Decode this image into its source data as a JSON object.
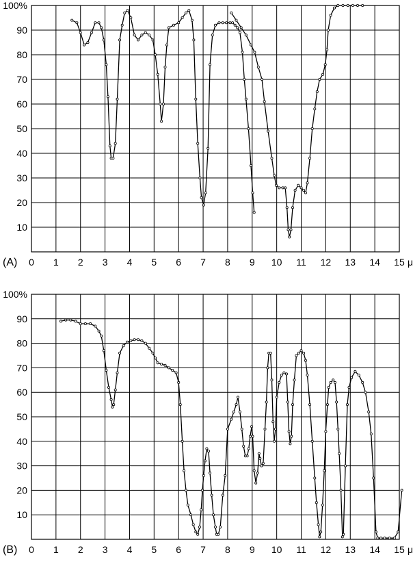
{
  "chart_data": [
    {
      "type": "line",
      "panel_label": "(A)",
      "x_unit": "μ",
      "x_ticks": [
        "0",
        "1",
        "2",
        "3",
        "4",
        "5",
        "6",
        "7",
        "8",
        "9",
        "10",
        "11",
        "12",
        "13",
        "14",
        "15"
      ],
      "y_ticks": [
        "10",
        "20",
        "30",
        "40",
        "50",
        "60",
        "70",
        "80",
        "90",
        "100%"
      ],
      "xlim": [
        0,
        15
      ],
      "ylim": [
        0,
        100
      ],
      "grid": true,
      "series": [
        {
          "values": [
            [
              1.65,
              94
            ],
            [
              1.85,
              93
            ],
            [
              2.0,
              89
            ],
            [
              2.15,
              84
            ],
            [
              2.3,
              85
            ],
            [
              2.45,
              89
            ],
            [
              2.6,
              93
            ],
            [
              2.75,
              93
            ],
            [
              2.85,
              91
            ],
            [
              2.95,
              86
            ],
            [
              3.05,
              76
            ],
            [
              3.12,
              63
            ],
            [
              3.2,
              43
            ],
            [
              3.25,
              38
            ],
            [
              3.33,
              38
            ],
            [
              3.42,
              44
            ],
            [
              3.5,
              62
            ],
            [
              3.6,
              86
            ],
            [
              3.7,
              92
            ],
            [
              3.8,
              97
            ],
            [
              3.92,
              98
            ],
            [
              4.05,
              95
            ],
            [
              4.2,
              88
            ],
            [
              4.35,
              86
            ],
            [
              4.5,
              88
            ],
            [
              4.65,
              89
            ],
            [
              4.8,
              88
            ],
            [
              4.95,
              86
            ],
            [
              5.05,
              80
            ],
            [
              5.15,
              72
            ],
            [
              5.25,
              60
            ],
            [
              5.3,
              53
            ],
            [
              5.38,
              60
            ],
            [
              5.45,
              75
            ],
            [
              5.52,
              84
            ],
            [
              5.6,
              91
            ],
            [
              5.8,
              92
            ],
            [
              6.0,
              93
            ],
            [
              6.15,
              95
            ],
            [
              6.3,
              97
            ],
            [
              6.42,
              98
            ],
            [
              6.55,
              94
            ],
            [
              6.62,
              86
            ],
            [
              6.7,
              62
            ],
            [
              6.78,
              44
            ],
            [
              6.87,
              30
            ],
            [
              6.93,
              22
            ],
            [
              7.02,
              19
            ],
            [
              7.1,
              24
            ],
            [
              7.2,
              42
            ],
            [
              7.28,
              76
            ],
            [
              7.38,
              88
            ],
            [
              7.5,
              92
            ],
            [
              7.65,
              93
            ],
            [
              7.8,
              93
            ],
            [
              7.95,
              93
            ],
            [
              8.1,
              93
            ],
            [
              8.2,
              93
            ],
            [
              8.3,
              92
            ],
            [
              8.4,
              91
            ],
            [
              8.5,
              89
            ],
            [
              8.6,
              81
            ],
            [
              8.68,
              70
            ],
            [
              8.75,
              62
            ],
            [
              8.85,
              50
            ],
            [
              8.95,
              35
            ],
            [
              9.02,
              24
            ],
            [
              9.08,
              16
            ]
          ]
        },
        {
          "values": [
            [
              8.15,
              97
            ],
            [
              8.35,
              94
            ],
            [
              8.55,
              91
            ],
            [
              8.75,
              88
            ],
            [
              8.95,
              84
            ],
            [
              9.1,
              81
            ],
            [
              9.25,
              75
            ],
            [
              9.4,
              70
            ],
            [
              9.5,
              61
            ],
            [
              9.65,
              49
            ],
            [
              9.8,
              38
            ],
            [
              9.9,
              31
            ],
            [
              9.98,
              27
            ],
            [
              10.1,
              26
            ],
            [
              10.25,
              26
            ],
            [
              10.35,
              26
            ],
            [
              10.42,
              18
            ],
            [
              10.47,
              9
            ],
            [
              10.52,
              6
            ],
            [
              10.58,
              9
            ],
            [
              10.65,
              18
            ],
            [
              10.75,
              25
            ],
            [
              10.88,
              27
            ],
            [
              11.0,
              26
            ],
            [
              11.1,
              25
            ],
            [
              11.18,
              24
            ],
            [
              11.25,
              28
            ],
            [
              11.35,
              38
            ],
            [
              11.45,
              50
            ],
            [
              11.55,
              58
            ],
            [
              11.65,
              65
            ],
            [
              11.75,
              70
            ],
            [
              11.88,
              72
            ],
            [
              11.98,
              76
            ],
            [
              12.05,
              82
            ],
            [
              12.1,
              90
            ],
            [
              12.2,
              96
            ],
            [
              12.35,
              99
            ],
            [
              12.5,
              100
            ],
            [
              12.7,
              100
            ],
            [
              12.9,
              100
            ],
            [
              13.1,
              100
            ],
            [
              13.3,
              100
            ],
            [
              13.5,
              100
            ]
          ]
        }
      ]
    },
    {
      "type": "line",
      "panel_label": "(B)",
      "x_unit": "μ",
      "x_ticks": [
        "0",
        "1",
        "2",
        "3",
        "4",
        "5",
        "6",
        "7",
        "8",
        "9",
        "10",
        "11",
        "12",
        "13",
        "14",
        "15"
      ],
      "y_ticks": [
        "10",
        "20",
        "30",
        "40",
        "50",
        "60",
        "70",
        "80",
        "90",
        "100%"
      ],
      "xlim": [
        0,
        15
      ],
      "ylim": [
        0,
        100
      ],
      "grid": true,
      "series": [
        {
          "values": [
            [
              1.2,
              89
            ],
            [
              1.4,
              89.5
            ],
            [
              1.6,
              89.5
            ],
            [
              1.8,
              89
            ],
            [
              2.0,
              88
            ],
            [
              2.2,
              88
            ],
            [
              2.4,
              88
            ],
            [
              2.6,
              87
            ],
            [
              2.75,
              85
            ],
            [
              2.85,
              83
            ],
            [
              2.95,
              77
            ],
            [
              3.05,
              69
            ],
            [
              3.15,
              62
            ],
            [
              3.25,
              57
            ],
            [
              3.3,
              54
            ],
            [
              3.35,
              55
            ],
            [
              3.42,
              61
            ],
            [
              3.5,
              68
            ],
            [
              3.6,
              76
            ],
            [
              3.75,
              79
            ],
            [
              3.9,
              80.5
            ],
            [
              4.05,
              81
            ],
            [
              4.2,
              81.5
            ],
            [
              4.35,
              81.5
            ],
            [
              4.5,
              81
            ],
            [
              4.65,
              80
            ],
            [
              4.8,
              78
            ],
            [
              4.95,
              76
            ],
            [
              5.05,
              74
            ],
            [
              5.15,
              72
            ],
            [
              5.3,
              71.5
            ],
            [
              5.45,
              71
            ],
            [
              5.6,
              70
            ],
            [
              5.75,
              69
            ],
            [
              5.9,
              68
            ],
            [
              6.0,
              64
            ],
            [
              6.07,
              55
            ],
            [
              6.15,
              40
            ],
            [
              6.22,
              28
            ],
            [
              6.3,
              20
            ],
            [
              6.38,
              14
            ],
            [
              6.5,
              10
            ],
            [
              6.6,
              6
            ],
            [
              6.7,
              3
            ],
            [
              6.78,
              2
            ],
            [
              6.86,
              5
            ],
            [
              6.92,
              12
            ],
            [
              6.97,
              20
            ],
            [
              7.02,
              26
            ],
            [
              7.08,
              32
            ],
            [
              7.15,
              37
            ],
            [
              7.22,
              36
            ],
            [
              7.28,
              27
            ],
            [
              7.35,
              18
            ],
            [
              7.42,
              10
            ],
            [
              7.5,
              5
            ],
            [
              7.55,
              2
            ],
            [
              7.62,
              2
            ],
            [
              7.7,
              5
            ],
            [
              7.8,
              18
            ],
            [
              7.9,
              26
            ],
            [
              8.0,
              45
            ],
            [
              8.15,
              49
            ],
            [
              8.25,
              52
            ],
            [
              8.35,
              55
            ],
            [
              8.42,
              58
            ],
            [
              8.5,
              52
            ],
            [
              8.58,
              45
            ],
            [
              8.65,
              38
            ],
            [
              8.72,
              34
            ],
            [
              8.8,
              34
            ],
            [
              8.86,
              37
            ],
            [
              8.92,
              42
            ],
            [
              8.98,
              46
            ],
            [
              9.02,
              42
            ],
            [
              9.08,
              28
            ],
            [
              9.15,
              23
            ],
            [
              9.22,
              27
            ],
            [
              9.28,
              35
            ],
            [
              9.32,
              33
            ],
            [
              9.38,
              30
            ],
            [
              9.45,
              31
            ],
            [
              9.52,
              45
            ],
            [
              9.58,
              56
            ],
            [
              9.63,
              70
            ],
            [
              9.68,
              76
            ],
            [
              9.75,
              76
            ],
            [
              9.8,
              65
            ],
            [
              9.85,
              48
            ],
            [
              9.9,
              40
            ],
            [
              9.95,
              45
            ],
            [
              10.0,
              58
            ],
            [
              10.1,
              64
            ],
            [
              10.2,
              67
            ],
            [
              10.3,
              68
            ],
            [
              10.4,
              67.5
            ],
            [
              10.45,
              56
            ],
            [
              10.5,
              44
            ],
            [
              10.55,
              39
            ],
            [
              10.6,
              42
            ],
            [
              10.65,
              55
            ],
            [
              10.72,
              65
            ],
            [
              10.8,
              75
            ],
            [
              10.9,
              76
            ],
            [
              11.0,
              77
            ],
            [
              11.1,
              76
            ],
            [
              11.18,
              73
            ],
            [
              11.25,
              67
            ],
            [
              11.35,
              55
            ],
            [
              11.45,
              40
            ],
            [
              11.55,
              25
            ],
            [
              11.62,
              15
            ],
            [
              11.7,
              6
            ],
            [
              11.75,
              1
            ],
            [
              11.8,
              3
            ],
            [
              11.87,
              14
            ],
            [
              11.94,
              28
            ],
            [
              12.0,
              44
            ],
            [
              12.07,
              55
            ],
            [
              12.12,
              62
            ],
            [
              12.2,
              64
            ],
            [
              12.3,
              65
            ],
            [
              12.38,
              64
            ],
            [
              12.44,
              56
            ],
            [
              12.5,
              45
            ],
            [
              12.55,
              35
            ],
            [
              12.62,
              20
            ],
            [
              12.68,
              1
            ],
            [
              12.72,
              2
            ],
            [
              12.8,
              30
            ],
            [
              12.88,
              55
            ],
            [
              12.95,
              62
            ],
            [
              13.05,
              66
            ],
            [
              13.2,
              68.5
            ],
            [
              13.35,
              67
            ],
            [
              13.5,
              64
            ],
            [
              13.62,
              60
            ],
            [
              13.75,
              52
            ],
            [
              13.85,
              43
            ],
            [
              13.95,
              25
            ],
            [
              14.05,
              3
            ],
            [
              14.12,
              0.5
            ],
            [
              14.25,
              0.5
            ],
            [
              14.4,
              0.5
            ],
            [
              14.6,
              0.5
            ],
            [
              14.8,
              0.5
            ],
            [
              14.95,
              3
            ],
            [
              15.1,
              20
            ]
          ]
        }
      ]
    }
  ]
}
